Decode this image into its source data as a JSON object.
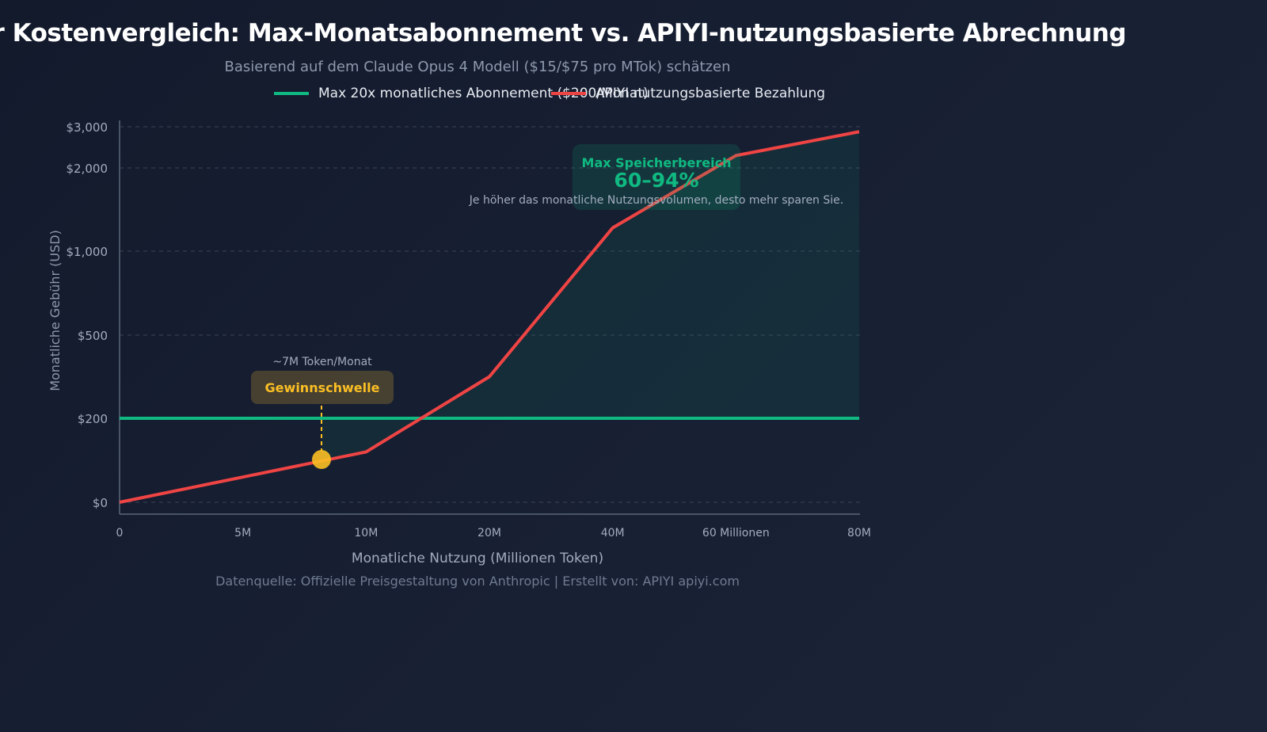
{
  "title": "Token-Nutzer Kostenvergleich: Max-Monatsabonnement vs. APIYI-nutzungsbasierte Abrechnung",
  "title_visible": "er Kostenvergleich: Max-Monatsabonnement vs. APIYI-nutzungsbasierte Abrechnung",
  "subtitle": "Basierend auf dem Claude Opus 4 Modell ($15/$75 pro MTok) schätzen",
  "footer": "Datenquelle: Offizielle Preisgestaltung von Anthropic | Erstellt von: APIYI apiyi.com",
  "colors": {
    "subscription": "#10b981",
    "payg": "#ef4444",
    "breakeven": "#fbbf24",
    "savings_fill": "#10b981"
  },
  "chart_data": {
    "type": "line",
    "xlabel": "Monatliche Nutzung (Millionen Token)",
    "ylabel": "Monatliche Gebühr (USD)",
    "categories": [
      "0",
      "5M",
      "10M",
      "20M",
      "40M",
      "60 Millionen",
      "80M"
    ],
    "y_ticks": [
      0,
      200,
      500,
      1000,
      2000,
      3000
    ],
    "y_tick_labels": [
      "$0",
      "$200",
      "$500",
      "$1,000",
      "$2,000",
      "$3,000"
    ],
    "grid": true,
    "legend": "top",
    "series": [
      {
        "name": "Max 20x monatliches Abonnement ($200/Monat)",
        "values": [
          200,
          200,
          200,
          200,
          200,
          200,
          200
        ]
      },
      {
        "name": "APIYI nutzungsbasierte Bezahlung",
        "values": [
          0,
          60,
          120,
          350,
          1280,
          2300,
          2880
        ]
      }
    ],
    "annotations": {
      "breakeven_label": "Gewinnschwelle",
      "breakeven_sub": "~7M Token/Monat",
      "savings_title": "Max Speicherbereich",
      "savings_value": "60–94%",
      "savings_note": "Je höher das monatliche Nutzungsvolumen, desto mehr sparen Sie."
    }
  }
}
